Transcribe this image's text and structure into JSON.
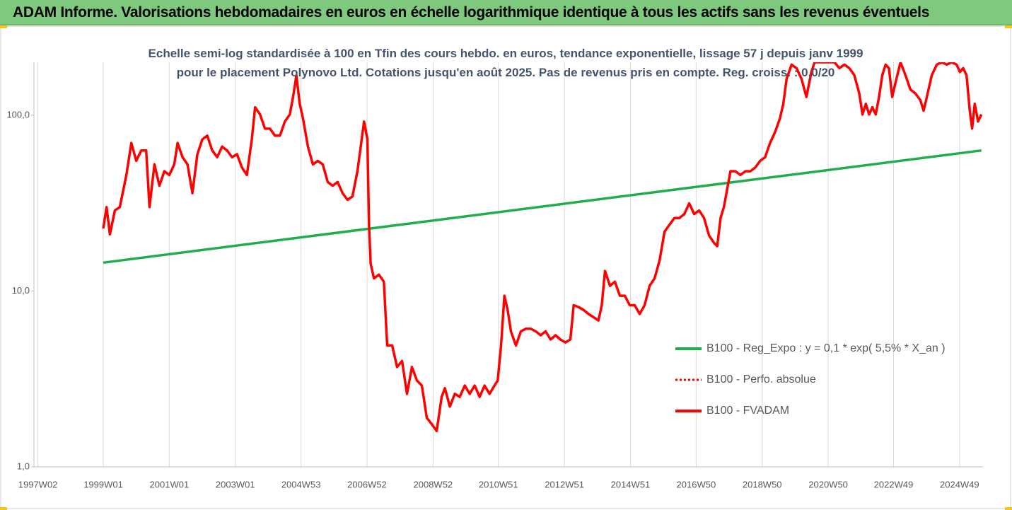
{
  "header": {
    "title": "ADAM Informe. Valorisations hebdomadaires en euros en échelle logarithmique identique à tous les actifs sans les revenus éventuels"
  },
  "chart_data": {
    "type": "line",
    "subtitle": "Echelle semi-log standardisée à 100 en Tfin des cours hebdo. en euros, tendance exponentielle, lissage 57 j depuis janv 1999 pour le placement Polynovo Ltd. Cotations jusqu'en août 2025. Pas de revenus pris en compte. Reg. croiss. : 0,0/20",
    "ylog": true,
    "ylim": [
      1,
      200
    ],
    "yticks": [
      {
        "value": 1,
        "label": "1,0"
      },
      {
        "value": 10,
        "label": "10,0"
      },
      {
        "value": 100,
        "label": "100,0"
      }
    ],
    "xlim": [
      1996.9,
      2025.65
    ],
    "xticks": [
      {
        "value": 1997.02,
        "label": "1997W02"
      },
      {
        "value": 1999.0,
        "label": "1999W01"
      },
      {
        "value": 2001.0,
        "label": "2001W01"
      },
      {
        "value": 2003.0,
        "label": "2003W01"
      },
      {
        "value": 2004.99,
        "label": "2004W53"
      },
      {
        "value": 2006.99,
        "label": "2006W52"
      },
      {
        "value": 2008.99,
        "label": "2008W52"
      },
      {
        "value": 2010.97,
        "label": "2010W51"
      },
      {
        "value": 2012.97,
        "label": "2012W51"
      },
      {
        "value": 2014.97,
        "label": "2014W51"
      },
      {
        "value": 2016.96,
        "label": "2016W50"
      },
      {
        "value": 2018.96,
        "label": "2018W50"
      },
      {
        "value": 2020.96,
        "label": "2020W50"
      },
      {
        "value": 2022.94,
        "label": "2022W49"
      },
      {
        "value": 2024.94,
        "label": "2024W49"
      }
    ],
    "grid": true,
    "legend": "right",
    "x": [
      1999.0,
      1999.1,
      1999.2,
      1999.35,
      1999.5,
      1999.7,
      1999.85,
      2000.0,
      2000.15,
      2000.3,
      2000.4,
      2000.55,
      2000.7,
      2000.85,
      2001.0,
      2001.15,
      2001.25,
      2001.4,
      2001.55,
      2001.7,
      2001.85,
      2002.0,
      2002.15,
      2002.3,
      2002.45,
      2002.6,
      2002.75,
      2002.9,
      2003.05,
      2003.2,
      2003.35,
      2003.5,
      2003.6,
      2003.75,
      2003.9,
      2004.05,
      2004.2,
      2004.35,
      2004.5,
      2004.65,
      2004.75,
      2004.85,
      2004.95,
      2005.05,
      2005.2,
      2005.35,
      2005.5,
      2005.65,
      2005.8,
      2005.95,
      2006.1,
      2006.25,
      2006.4,
      2006.55,
      2006.7,
      2006.8,
      2006.9,
      2007.0,
      2007.05,
      2007.1,
      2007.2,
      2007.35,
      2007.5,
      2007.6,
      2007.75,
      2007.9,
      2008.05,
      2008.2,
      2008.35,
      2008.5,
      2008.65,
      2008.8,
      2008.95,
      2009.1,
      2009.25,
      2009.35,
      2009.5,
      2009.65,
      2009.8,
      2009.95,
      2010.1,
      2010.25,
      2010.4,
      2010.55,
      2010.7,
      2010.85,
      2010.95,
      2011.05,
      2011.15,
      2011.25,
      2011.35,
      2011.5,
      2011.65,
      2011.8,
      2011.95,
      2012.1,
      2012.25,
      2012.4,
      2012.55,
      2012.7,
      2012.85,
      2013.0,
      2013.15,
      2013.25,
      2013.4,
      2013.55,
      2013.7,
      2013.85,
      2014.0,
      2014.1,
      2014.2,
      2014.35,
      2014.5,
      2014.65,
      2014.8,
      2014.95,
      2015.1,
      2015.25,
      2015.4,
      2015.55,
      2015.7,
      2015.85,
      2016.0,
      2016.15,
      2016.3,
      2016.45,
      2016.6,
      2016.75,
      2016.9,
      2017.05,
      2017.2,
      2017.35,
      2017.5,
      2017.6,
      2017.7,
      2017.8,
      2017.9,
      2018.0,
      2018.15,
      2018.3,
      2018.45,
      2018.6,
      2018.75,
      2018.9,
      2019.05,
      2019.2,
      2019.35,
      2019.5,
      2019.6,
      2019.7,
      2019.85,
      2020.0,
      2020.15,
      2020.3,
      2020.45,
      2020.55,
      2020.7,
      2020.85,
      2021.0,
      2021.15,
      2021.3,
      2021.45,
      2021.6,
      2021.75,
      2021.9,
      2022.0,
      2022.1,
      2022.2,
      2022.3,
      2022.4,
      2022.5,
      2022.6,
      2022.7,
      2022.8,
      2022.9,
      2023.0,
      2023.15,
      2023.3,
      2023.45,
      2023.6,
      2023.75,
      2023.85,
      2023.95,
      2024.1,
      2024.25,
      2024.4,
      2024.55,
      2024.7,
      2024.85,
      2024.95,
      2025.05,
      2025.15,
      2025.25,
      2025.32,
      2025.4,
      2025.5,
      2025.6
    ],
    "series": [
      {
        "name": "B100 - Reg_Expo : y = 0,1 * exp( 5,5% *  X_an )",
        "color": "#1fae4b",
        "style": "solid",
        "x": [
          1999.0,
          2025.6
        ],
        "values": [
          14.5,
          63
        ]
      },
      {
        "name": "B100 - Perfo. absolue",
        "color": "#ff0000",
        "style": "dotted",
        "values": [
          22.7,
          30,
          21,
          28.7,
          30,
          45.7,
          69.5,
          55,
          63,
          63,
          30,
          52.5,
          39.7,
          48,
          45.7,
          52.5,
          69.5,
          57.7,
          52.5,
          36,
          60,
          72.9,
          76.5,
          63,
          57.7,
          66.3,
          63,
          57.7,
          60,
          50.4,
          45.7,
          72.9,
          111,
          101,
          83.8,
          83.8,
          76.5,
          76.5,
          92,
          101,
          127,
          168,
          116,
          96,
          66.3,
          52.5,
          55,
          52.5,
          41.7,
          39.7,
          41.7,
          36,
          33,
          34.5,
          48,
          66.3,
          92,
          72.9,
          23.8,
          14.3,
          11.8,
          12.4,
          11.3,
          4.9,
          4.9,
          3.7,
          4,
          2.6,
          3.7,
          3.1,
          2.9,
          1.9,
          1.75,
          1.6,
          2.5,
          2.8,
          2.2,
          2.6,
          2.5,
          2.9,
          2.6,
          2.9,
          2.5,
          2.9,
          2.6,
          2.9,
          3.1,
          4.9,
          9.4,
          7.8,
          5.9,
          4.9,
          5.9,
          6.1,
          6.1,
          5.9,
          5.6,
          5.9,
          5.3,
          5.6,
          5.3,
          5.1,
          5.3,
          8.3,
          8.1,
          7.8,
          7.4,
          7.1,
          6.8,
          8.3,
          13,
          10.7,
          11.3,
          9.4,
          9.4,
          8.3,
          8.3,
          7.4,
          8.3,
          10.7,
          11.8,
          14.9,
          21.7,
          23.8,
          26,
          26,
          27.4,
          31.5,
          27.4,
          28.7,
          26,
          20.7,
          18.8,
          18,
          26,
          30,
          37.9,
          48,
          48,
          45.7,
          48,
          48,
          50.4,
          55,
          57.7,
          69.5,
          80,
          96,
          116,
          161,
          194,
          185,
          161,
          127,
          176,
          200,
          200,
          200,
          200,
          200,
          185,
          194,
          185,
          169,
          133,
          101,
          116,
          101,
          111,
          101,
          127,
          169,
          194,
          185,
          127,
          153,
          200,
          169,
          140,
          133,
          122,
          106,
          127,
          169,
          194,
          200,
          194,
          200,
          194,
          176,
          185,
          169,
          106,
          84,
          116,
          92,
          101
        ]
      },
      {
        "name": "B100 - FVADAM",
        "color": "#ff0000",
        "style": "solid",
        "values": [
          22.7,
          30,
          21,
          28.7,
          30,
          45.7,
          69.5,
          55,
          63,
          63,
          30,
          52.5,
          39.7,
          48,
          45.7,
          52.5,
          69.5,
          57.7,
          52.5,
          36,
          60,
          72.9,
          76.5,
          63,
          57.7,
          66.3,
          63,
          57.7,
          60,
          50.4,
          45.7,
          72.9,
          111,
          101,
          83.8,
          83.8,
          76.5,
          76.5,
          92,
          101,
          127,
          168,
          116,
          96,
          66.3,
          52.5,
          55,
          52.5,
          41.7,
          39.7,
          41.7,
          36,
          33,
          34.5,
          48,
          66.3,
          92,
          72.9,
          23.8,
          14.3,
          11.8,
          12.4,
          11.3,
          4.9,
          4.9,
          3.7,
          4,
          2.6,
          3.7,
          3.1,
          2.9,
          1.9,
          1.75,
          1.6,
          2.5,
          2.8,
          2.2,
          2.6,
          2.5,
          2.9,
          2.6,
          2.9,
          2.5,
          2.9,
          2.6,
          2.9,
          3.1,
          4.9,
          9.4,
          7.8,
          5.9,
          4.9,
          5.9,
          6.1,
          6.1,
          5.9,
          5.6,
          5.9,
          5.3,
          5.6,
          5.3,
          5.1,
          5.3,
          8.3,
          8.1,
          7.8,
          7.4,
          7.1,
          6.8,
          8.3,
          13,
          10.7,
          11.3,
          9.4,
          9.4,
          8.3,
          8.3,
          7.4,
          8.3,
          10.7,
          11.8,
          14.9,
          21.7,
          23.8,
          26,
          26,
          27.4,
          31.5,
          27.4,
          28.7,
          26,
          20.7,
          18.8,
          18,
          26,
          30,
          37.9,
          48,
          48,
          45.7,
          48,
          48,
          50.4,
          55,
          57.7,
          69.5,
          80,
          96,
          116,
          161,
          194,
          185,
          161,
          127,
          176,
          200,
          200,
          200,
          200,
          200,
          185,
          194,
          185,
          169,
          133,
          101,
          116,
          101,
          111,
          101,
          127,
          169,
          194,
          185,
          127,
          153,
          200,
          169,
          140,
          133,
          122,
          106,
          127,
          169,
          194,
          200,
          194,
          200,
          194,
          176,
          185,
          169,
          106,
          84,
          116,
          92,
          101
        ]
      }
    ]
  }
}
